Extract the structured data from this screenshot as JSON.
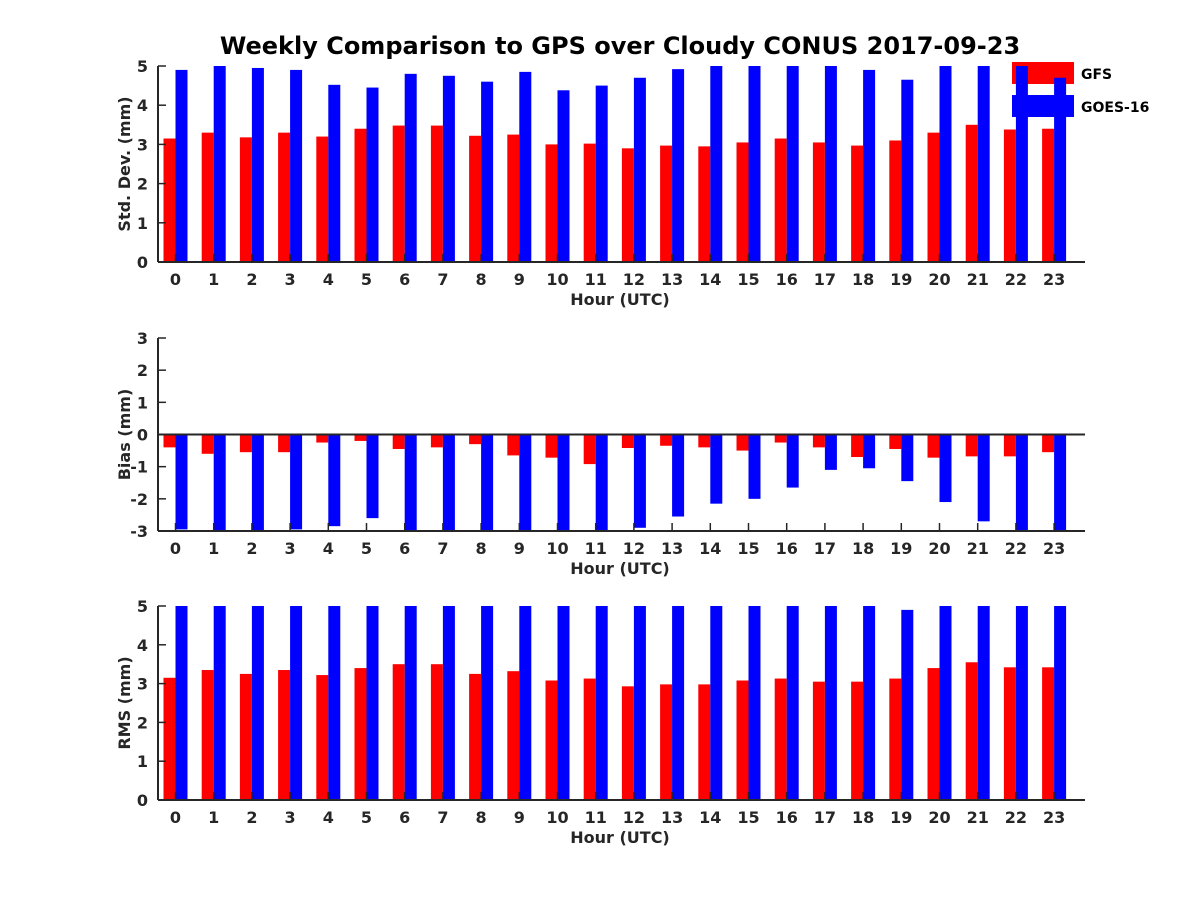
{
  "title": "Weekly Comparison to GPS over Cloudy CONUS 2017-09-23",
  "colors": {
    "gfs": "#ff0000",
    "goes": "#0000ff",
    "axis": "#262626"
  },
  "legend": {
    "gfs_label": "GFS",
    "goes_label": "GOES-16",
    "placement": "top-right"
  },
  "chart_data": [
    {
      "type": "bar",
      "ylabel": "Std. Dev. (mm)",
      "xlabel": "Hour (UTC)",
      "ylim": [
        0,
        5
      ],
      "yticks": [
        0,
        1,
        2,
        3,
        4,
        5
      ],
      "categories": [
        "0",
        "1",
        "2",
        "3",
        "4",
        "5",
        "6",
        "7",
        "8",
        "9",
        "10",
        "11",
        "12",
        "13",
        "14",
        "15",
        "16",
        "17",
        "18",
        "19",
        "20",
        "21",
        "22",
        "23"
      ],
      "series": [
        {
          "name": "GFS",
          "values": [
            3.15,
            3.3,
            3.18,
            3.3,
            3.2,
            3.4,
            3.48,
            3.48,
            3.22,
            3.25,
            3.0,
            3.02,
            2.9,
            2.97,
            2.95,
            3.05,
            3.15,
            3.05,
            2.97,
            3.1,
            3.3,
            3.5,
            3.38,
            3.4
          ]
        },
        {
          "name": "GOES-16",
          "values": [
            4.9,
            5.0,
            4.95,
            4.9,
            4.52,
            4.45,
            4.8,
            4.75,
            4.6,
            4.85,
            4.38,
            4.5,
            4.7,
            4.92,
            5.0,
            5.0,
            5.0,
            5.0,
            4.9,
            4.65,
            5.0,
            5.0,
            5.0,
            4.7
          ]
        }
      ]
    },
    {
      "type": "bar",
      "ylabel": "Bias (mm)",
      "xlabel": "Hour (UTC)",
      "ylim": [
        -3,
        3
      ],
      "yticks": [
        -3,
        -2,
        -1,
        0,
        1,
        2,
        3
      ],
      "categories": [
        "0",
        "1",
        "2",
        "3",
        "4",
        "5",
        "6",
        "7",
        "8",
        "9",
        "10",
        "11",
        "12",
        "13",
        "14",
        "15",
        "16",
        "17",
        "18",
        "19",
        "20",
        "21",
        "22",
        "23"
      ],
      "series": [
        {
          "name": "GFS",
          "values": [
            -0.4,
            -0.6,
            -0.55,
            -0.55,
            -0.25,
            -0.2,
            -0.45,
            -0.4,
            -0.3,
            -0.65,
            -0.72,
            -0.92,
            -0.42,
            -0.35,
            -0.4,
            -0.5,
            -0.25,
            -0.4,
            -0.7,
            -0.45,
            -0.72,
            -0.68,
            -0.68,
            -0.55
          ]
        },
        {
          "name": "GOES-16",
          "values": [
            -2.95,
            -3.0,
            -3.0,
            -2.95,
            -2.85,
            -2.6,
            -3.0,
            -3.0,
            -3.0,
            -3.0,
            -3.0,
            -3.0,
            -2.9,
            -2.55,
            -2.15,
            -2.0,
            -1.65,
            -1.1,
            -1.05,
            -1.45,
            -2.1,
            -2.7,
            -3.0,
            -3.0
          ]
        }
      ]
    },
    {
      "type": "bar",
      "ylabel": "RMS (mm)",
      "xlabel": "Hour (UTC)",
      "ylim": [
        0,
        5
      ],
      "yticks": [
        0,
        1,
        2,
        3,
        4,
        5
      ],
      "categories": [
        "0",
        "1",
        "2",
        "3",
        "4",
        "5",
        "6",
        "7",
        "8",
        "9",
        "10",
        "11",
        "12",
        "13",
        "14",
        "15",
        "16",
        "17",
        "18",
        "19",
        "20",
        "21",
        "22",
        "23"
      ],
      "series": [
        {
          "name": "GFS",
          "values": [
            3.15,
            3.35,
            3.25,
            3.35,
            3.22,
            3.4,
            3.5,
            3.5,
            3.25,
            3.32,
            3.08,
            3.13,
            2.93,
            2.98,
            2.98,
            3.08,
            3.13,
            3.05,
            3.05,
            3.13,
            3.4,
            3.55,
            3.42,
            3.42
          ]
        },
        {
          "name": "GOES-16",
          "values": [
            5.0,
            5.0,
            5.0,
            5.0,
            5.0,
            5.0,
            5.0,
            5.0,
            5.0,
            5.0,
            5.0,
            5.0,
            5.0,
            5.0,
            5.0,
            5.0,
            5.0,
            5.0,
            5.0,
            4.9,
            5.0,
            5.0,
            5.0,
            5.0
          ]
        }
      ]
    }
  ]
}
